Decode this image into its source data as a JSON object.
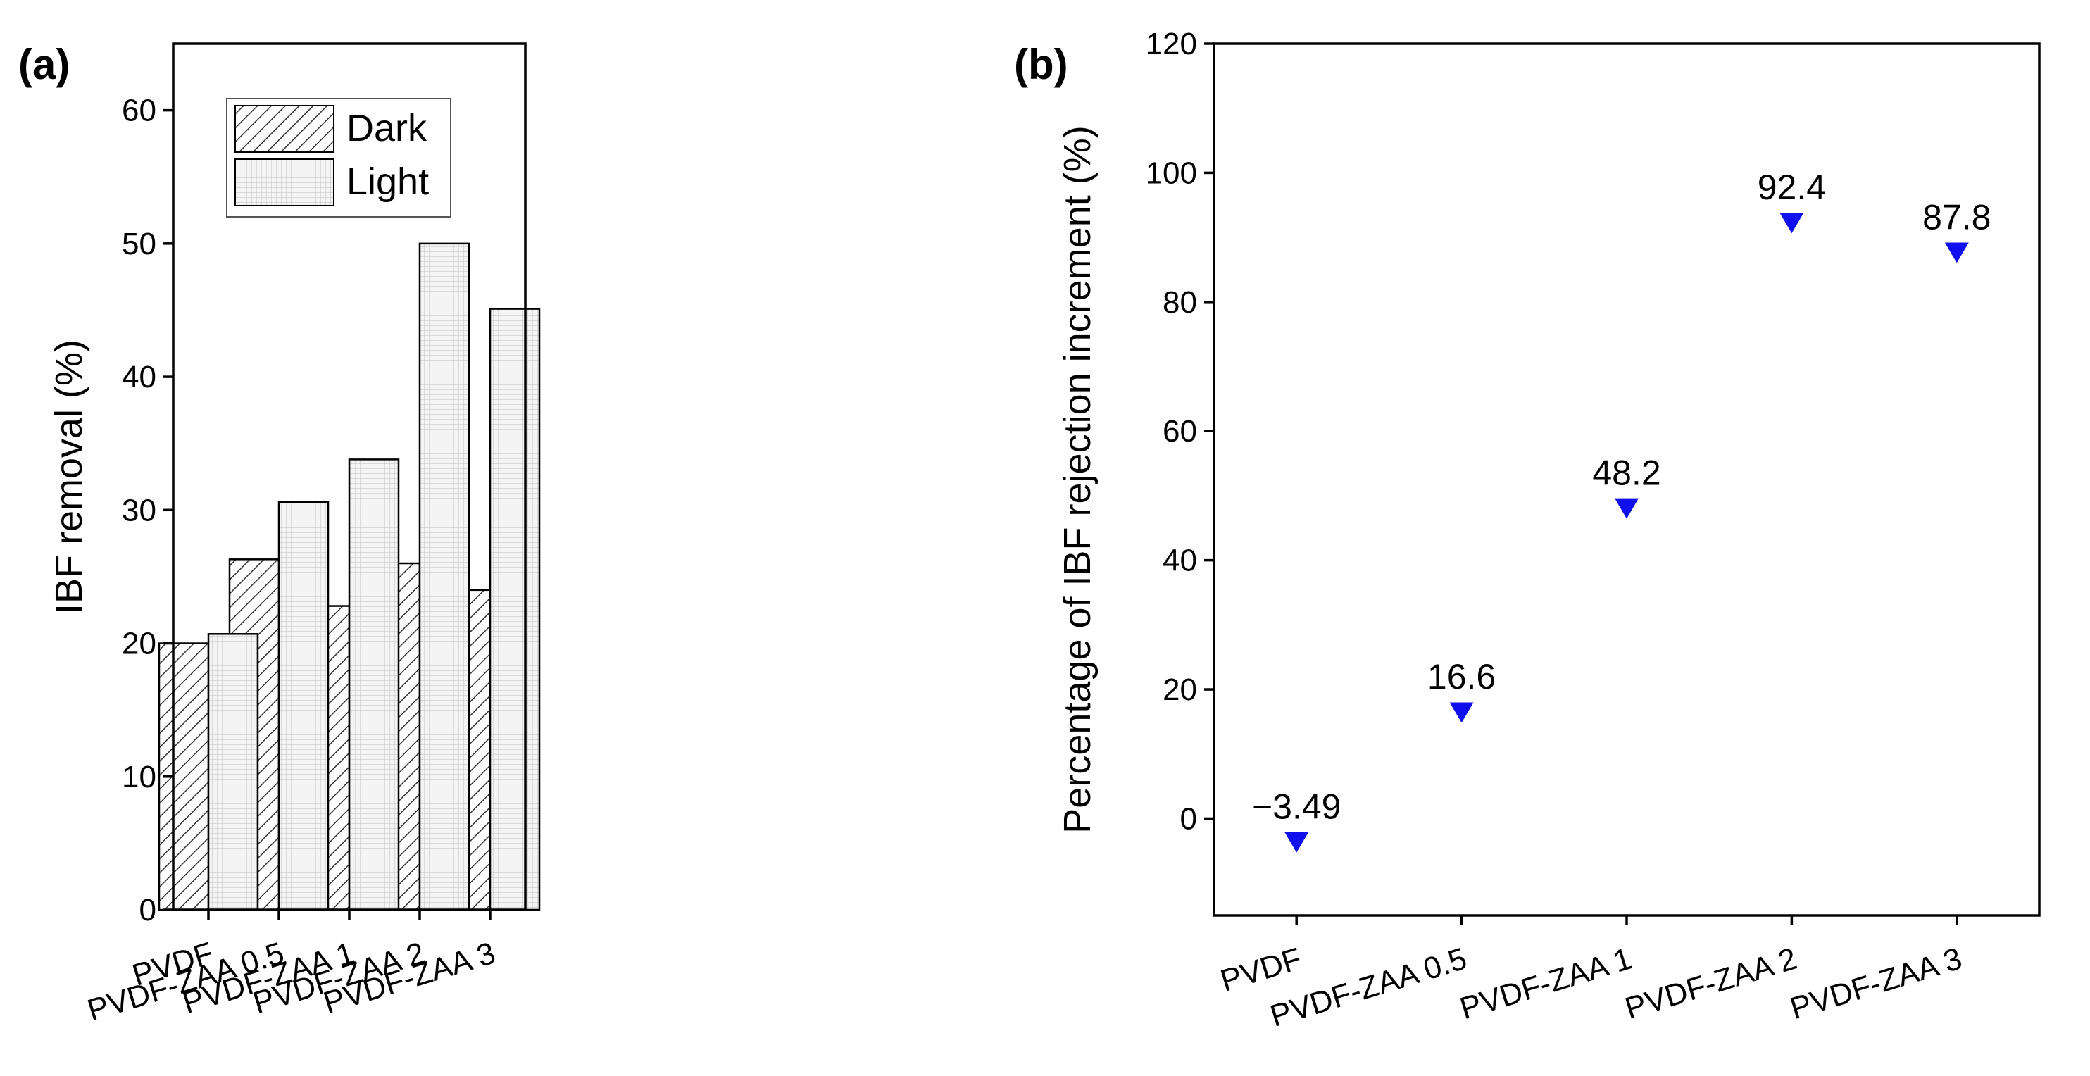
{
  "chart_data": [
    {
      "panel": "(a)",
      "type": "bar",
      "categories": [
        "PVDF",
        "PVDF-ZAA 0.5",
        "PVDF-ZAA 1",
        "PVDF-ZAA 2",
        "PVDF-ZAA 3"
      ],
      "series": [
        {
          "name": "Dark",
          "values": [
            20.0,
            26.3,
            22.8,
            26.0,
            24.0
          ],
          "pattern": "hatch"
        },
        {
          "name": "Light",
          "values": [
            20.7,
            30.6,
            33.8,
            50.0,
            45.1
          ],
          "pattern": "grid"
        }
      ],
      "ylabel": "IBF removal (%)",
      "xlabel": "",
      "ylim": [
        0,
        65
      ],
      "yticks": [
        0,
        10,
        20,
        30,
        40,
        50,
        60
      ],
      "legend_position": "top-left"
    },
    {
      "panel": "(b)",
      "type": "scatter",
      "categories": [
        "PVDF",
        "PVDF-ZAA 0.5",
        "PVDF-ZAA 1",
        "PVDF-ZAA 2",
        "PVDF-ZAA 3"
      ],
      "values": [
        -3.49,
        16.6,
        48.2,
        92.4,
        87.8
      ],
      "data_labels": [
        "−3.49",
        "16.6",
        "48.2",
        "92.4",
        "87.8"
      ],
      "marker": "down-triangle",
      "marker_color": "#1010ee",
      "ylabel": "Percentage of IBF rejection increment (%)",
      "xlabel": "",
      "ylim": [
        -15,
        120
      ],
      "yticks": [
        0,
        20,
        40,
        60,
        80,
        100,
        120
      ]
    }
  ]
}
